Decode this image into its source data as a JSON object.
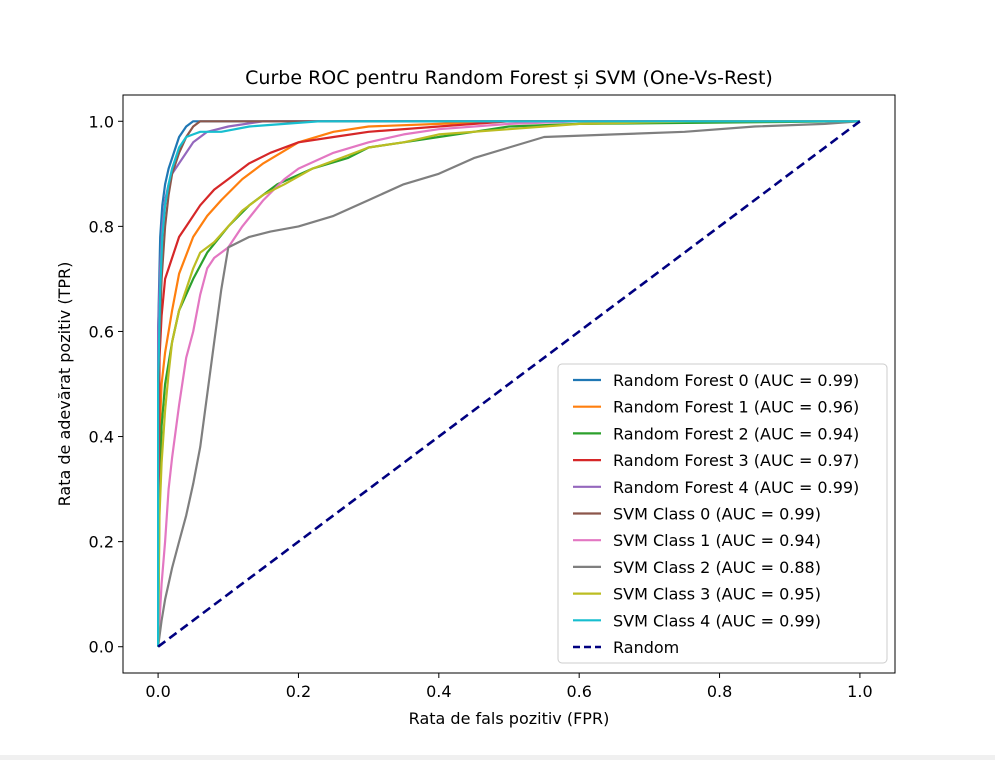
{
  "chart_data": {
    "type": "line",
    "title": "Curbe ROC pentru Random Forest și SVM (One-Vs-Rest)",
    "xlabel": "Rata de fals pozitiv (FPR)",
    "ylabel": "Rata de adevărat pozitiv (TPR)",
    "xlim": [
      -0.05,
      1.05
    ],
    "ylim": [
      -0.05,
      1.05
    ],
    "xticks": [
      "0.0",
      "0.2",
      "0.4",
      "0.6",
      "0.8",
      "1.0"
    ],
    "yticks": [
      "0.0",
      "0.2",
      "0.4",
      "0.6",
      "0.8",
      "1.0"
    ],
    "grid": false,
    "legend_position": "lower-right",
    "series": [
      {
        "name": "Random Forest 0 (AUC = 0.99)",
        "color": "#1f77b4",
        "dash": false,
        "x": [
          0,
          0.0,
          0.003,
          0.006,
          0.01,
          0.015,
          0.02,
          0.025,
          0.03,
          0.04,
          0.05,
          1.0
        ],
        "y": [
          0,
          0.6,
          0.78,
          0.84,
          0.88,
          0.91,
          0.93,
          0.95,
          0.97,
          0.99,
          1.0,
          1.0
        ]
      },
      {
        "name": "Random Forest 1 (AUC = 0.96)",
        "color": "#ff7f0e",
        "dash": false,
        "x": [
          0,
          0.002,
          0.005,
          0.01,
          0.02,
          0.03,
          0.05,
          0.07,
          0.09,
          0.12,
          0.15,
          0.2,
          0.25,
          0.3,
          0.4,
          0.5,
          1.0
        ],
        "y": [
          0,
          0.4,
          0.5,
          0.56,
          0.64,
          0.71,
          0.78,
          0.82,
          0.85,
          0.89,
          0.92,
          0.96,
          0.98,
          0.99,
          0.995,
          1.0,
          1.0
        ]
      },
      {
        "name": "Random Forest 2 (AUC = 0.94)",
        "color": "#2ca02c",
        "dash": false,
        "x": [
          0,
          0.002,
          0.005,
          0.01,
          0.02,
          0.03,
          0.05,
          0.07,
          0.1,
          0.13,
          0.17,
          0.22,
          0.27,
          0.3,
          0.35,
          0.4,
          0.45,
          0.5,
          0.6,
          1.0
        ],
        "y": [
          0,
          0.3,
          0.42,
          0.5,
          0.58,
          0.64,
          0.7,
          0.75,
          0.8,
          0.84,
          0.88,
          0.91,
          0.93,
          0.95,
          0.96,
          0.97,
          0.98,
          0.99,
          0.995,
          1.0
        ]
      },
      {
        "name": "Random Forest 3 (AUC = 0.97)",
        "color": "#d62728",
        "dash": false,
        "x": [
          0,
          0.002,
          0.005,
          0.01,
          0.02,
          0.03,
          0.04,
          0.06,
          0.08,
          0.1,
          0.13,
          0.16,
          0.2,
          0.25,
          0.3,
          0.4,
          0.5,
          1.0
        ],
        "y": [
          0,
          0.55,
          0.63,
          0.7,
          0.74,
          0.78,
          0.8,
          0.84,
          0.87,
          0.89,
          0.92,
          0.94,
          0.96,
          0.97,
          0.98,
          0.99,
          1.0,
          1.0
        ]
      },
      {
        "name": "Random Forest 4 (AUC = 0.99)",
        "color": "#9467bd",
        "dash": false,
        "x": [
          0,
          0.0,
          0.003,
          0.006,
          0.01,
          0.015,
          0.02,
          0.03,
          0.04,
          0.05,
          0.07,
          0.1,
          0.15,
          1.0
        ],
        "y": [
          0,
          0.6,
          0.72,
          0.8,
          0.85,
          0.88,
          0.9,
          0.92,
          0.94,
          0.96,
          0.98,
          0.99,
          1.0,
          1.0
        ]
      },
      {
        "name": "SVM Class 0 (AUC = 0.99)",
        "color": "#8c564b",
        "dash": false,
        "x": [
          0,
          0.0,
          0.005,
          0.01,
          0.015,
          0.02,
          0.03,
          0.04,
          0.05,
          0.06,
          1.0
        ],
        "y": [
          0,
          0.5,
          0.7,
          0.8,
          0.86,
          0.9,
          0.94,
          0.97,
          0.99,
          1.0,
          1.0
        ]
      },
      {
        "name": "SVM Class 1 (AUC = 0.94)",
        "color": "#e377c2",
        "dash": false,
        "x": [
          0,
          0.005,
          0.01,
          0.015,
          0.02,
          0.03,
          0.04,
          0.05,
          0.06,
          0.07,
          0.08,
          0.1,
          0.12,
          0.15,
          0.18,
          0.2,
          0.25,
          0.3,
          0.35,
          0.4,
          0.5,
          0.6,
          1.0
        ],
        "y": [
          0,
          0.12,
          0.2,
          0.3,
          0.36,
          0.46,
          0.55,
          0.6,
          0.67,
          0.72,
          0.74,
          0.76,
          0.8,
          0.85,
          0.89,
          0.91,
          0.94,
          0.96,
          0.975,
          0.985,
          0.995,
          1.0,
          1.0
        ]
      },
      {
        "name": "SVM Class 2 (AUC = 0.88)",
        "color": "#7f7f7f",
        "dash": false,
        "x": [
          0,
          0.005,
          0.01,
          0.015,
          0.02,
          0.03,
          0.04,
          0.05,
          0.06,
          0.07,
          0.08,
          0.09,
          0.1,
          0.13,
          0.16,
          0.2,
          0.25,
          0.3,
          0.35,
          0.4,
          0.45,
          0.5,
          0.55,
          0.65,
          0.75,
          0.85,
          0.95,
          1.0
        ],
        "y": [
          0,
          0.05,
          0.09,
          0.12,
          0.15,
          0.2,
          0.25,
          0.31,
          0.38,
          0.48,
          0.58,
          0.68,
          0.76,
          0.78,
          0.79,
          0.8,
          0.82,
          0.85,
          0.88,
          0.9,
          0.93,
          0.95,
          0.97,
          0.975,
          0.98,
          0.99,
          0.995,
          1.0
        ]
      },
      {
        "name": "SVM Class 3 (AUC = 0.95)",
        "color": "#bcbd22",
        "dash": false,
        "x": [
          0,
          0.002,
          0.005,
          0.01,
          0.015,
          0.02,
          0.03,
          0.04,
          0.05,
          0.06,
          0.08,
          0.1,
          0.12,
          0.15,
          0.18,
          0.22,
          0.26,
          0.3,
          0.35,
          0.4,
          0.5,
          0.6,
          0.77,
          1.0
        ],
        "y": [
          0,
          0.25,
          0.35,
          0.45,
          0.52,
          0.58,
          0.64,
          0.68,
          0.72,
          0.75,
          0.77,
          0.8,
          0.83,
          0.86,
          0.88,
          0.91,
          0.93,
          0.95,
          0.96,
          0.975,
          0.985,
          0.995,
          1.0,
          1.0
        ]
      },
      {
        "name": "SVM Class 4 (AUC = 0.99)",
        "color": "#17becf",
        "dash": false,
        "x": [
          0,
          0.0,
          0.003,
          0.006,
          0.01,
          0.015,
          0.02,
          0.03,
          0.04,
          0.05,
          0.06,
          0.09,
          0.13,
          0.18,
          0.23,
          1.0
        ],
        "y": [
          0,
          0.5,
          0.68,
          0.78,
          0.84,
          0.88,
          0.91,
          0.95,
          0.97,
          0.975,
          0.98,
          0.98,
          0.99,
          0.995,
          1.0,
          1.0
        ]
      },
      {
        "name": "Random",
        "color": "#000080",
        "dash": true,
        "x": [
          0,
          1
        ],
        "y": [
          0,
          1
        ]
      }
    ]
  }
}
